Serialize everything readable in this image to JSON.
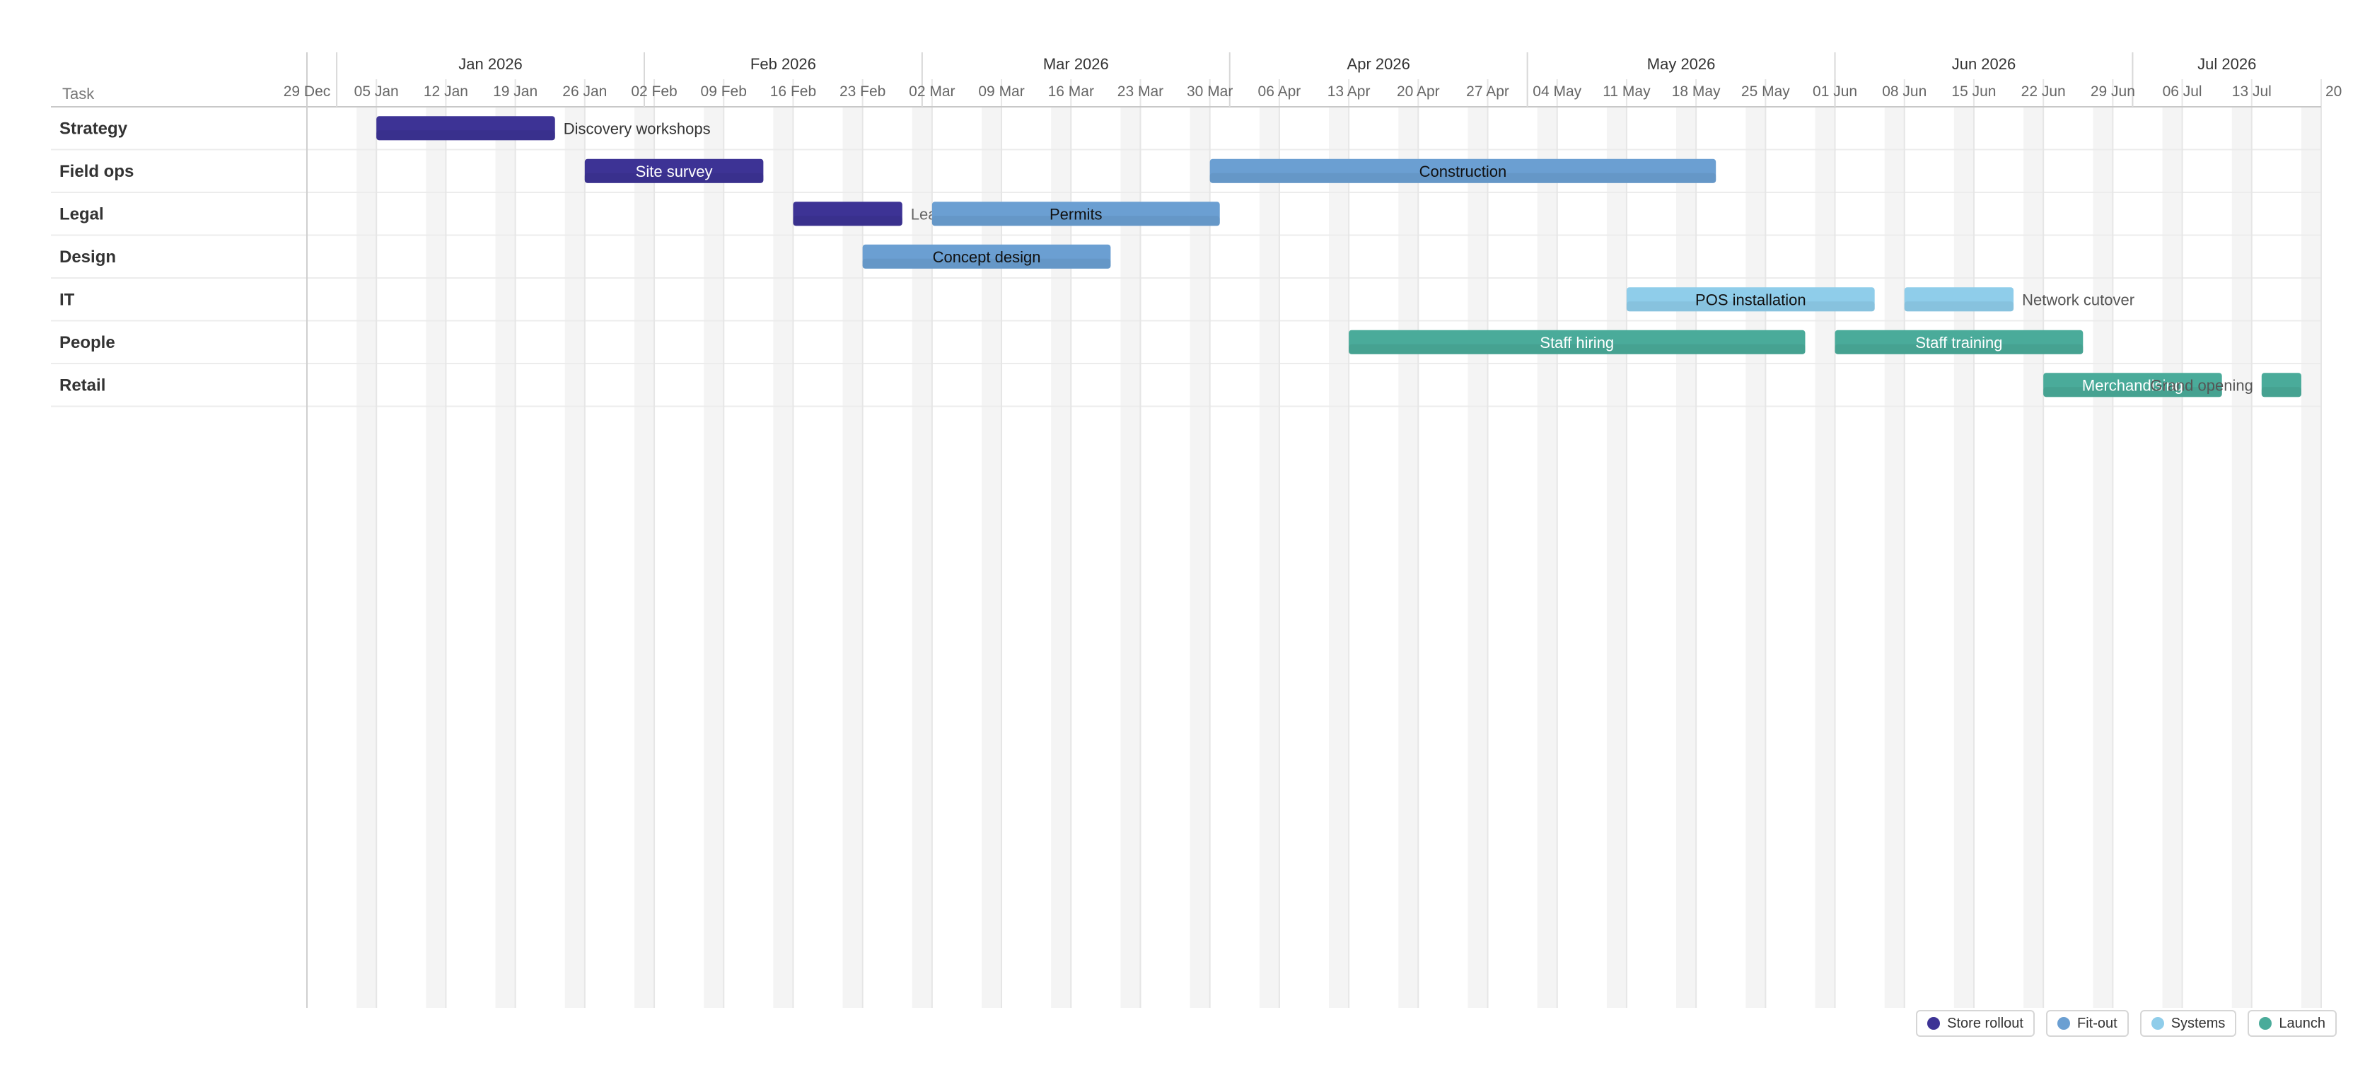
{
  "chart_data": {
    "type": "gantt",
    "task_header": "Task",
    "x_range": [
      "2025-12-29",
      "2026-07-20"
    ],
    "weekend_shading": true,
    "grid": true,
    "months": [
      {
        "label": "Jan 2026",
        "start": "2026-01-01",
        "end": "2026-02-01"
      },
      {
        "label": "Feb 2026",
        "start": "2026-02-01",
        "end": "2026-03-01"
      },
      {
        "label": "Mar 2026",
        "start": "2026-03-01",
        "end": "2026-04-01"
      },
      {
        "label": "Apr 2026",
        "start": "2026-04-01",
        "end": "2026-05-01"
      },
      {
        "label": "May 2026",
        "start": "2026-05-01",
        "end": "2026-06-01"
      },
      {
        "label": "Jun 2026",
        "start": "2026-06-01",
        "end": "2026-07-01"
      },
      {
        "label": "Jul 2026",
        "start": "2026-07-01",
        "end": "2026-07-20"
      }
    ],
    "weeks": [
      {
        "label": "29 Dec",
        "date": "2025-12-29"
      },
      {
        "label": "05 Jan",
        "date": "2026-01-05"
      },
      {
        "label": "12 Jan",
        "date": "2026-01-12"
      },
      {
        "label": "19 Jan",
        "date": "2026-01-19"
      },
      {
        "label": "26 Jan",
        "date": "2026-01-26"
      },
      {
        "label": "02 Feb",
        "date": "2026-02-02"
      },
      {
        "label": "09 Feb",
        "date": "2026-02-09"
      },
      {
        "label": "16 Feb",
        "date": "2026-02-16"
      },
      {
        "label": "23 Feb",
        "date": "2026-02-23"
      },
      {
        "label": "02 Mar",
        "date": "2026-03-02"
      },
      {
        "label": "09 Mar",
        "date": "2026-03-09"
      },
      {
        "label": "16 Mar",
        "date": "2026-03-16"
      },
      {
        "label": "23 Mar",
        "date": "2026-03-23"
      },
      {
        "label": "30 Mar",
        "date": "2026-03-30"
      },
      {
        "label": "06 Apr",
        "date": "2026-04-06"
      },
      {
        "label": "13 Apr",
        "date": "2026-04-13"
      },
      {
        "label": "20 Apr",
        "date": "2026-04-20"
      },
      {
        "label": "27 Apr",
        "date": "2026-04-27"
      },
      {
        "label": "04 May",
        "date": "2026-05-04"
      },
      {
        "label": "11 May",
        "date": "2026-05-11"
      },
      {
        "label": "18 May",
        "date": "2026-05-18"
      },
      {
        "label": "25 May",
        "date": "2026-05-25"
      },
      {
        "label": "01 Jun",
        "date": "2026-06-01"
      },
      {
        "label": "08 Jun",
        "date": "2026-06-08"
      },
      {
        "label": "15 Jun",
        "date": "2026-06-15"
      },
      {
        "label": "22 Jun",
        "date": "2026-06-22"
      },
      {
        "label": "29 Jun",
        "date": "2026-06-29"
      },
      {
        "label": "06 Jul",
        "date": "2026-07-06"
      },
      {
        "label": "13 Jul",
        "date": "2026-07-13"
      },
      {
        "label": "20",
        "date": "2026-07-20"
      }
    ],
    "categories": [
      "Strategy",
      "Field ops",
      "Legal",
      "Design",
      "IT",
      "People",
      "Retail"
    ],
    "series": [
      {
        "name": "Store rollout",
        "color": "#3d3395"
      },
      {
        "name": "Fit-out",
        "color": "#6b9fd2"
      },
      {
        "name": "Systems",
        "color": "#8fcdea"
      },
      {
        "name": "Launch",
        "color": "#4aab9a"
      }
    ],
    "tasks": [
      {
        "row": "Strategy",
        "label": "Discovery workshops",
        "start": "2026-01-05",
        "end": "2026-01-23",
        "series": "Store rollout",
        "label_position": "outside",
        "label_color": "#333333"
      },
      {
        "row": "Field ops",
        "label": "Site survey",
        "start": "2026-01-26",
        "end": "2026-02-13",
        "series": "Store rollout",
        "label_position": "inside",
        "label_color": "#ffffff"
      },
      {
        "row": "Field ops",
        "label": "Construction",
        "start": "2026-03-30",
        "end": "2026-05-20",
        "series": "Fit-out",
        "label_position": "inside",
        "label_color": "#111111"
      },
      {
        "row": "Legal",
        "label": "Lease signed",
        "start": "2026-02-16",
        "end": "2026-02-27",
        "series": "Store rollout",
        "label_position": "outside",
        "label_color": "#666666"
      },
      {
        "row": "Legal",
        "label": "Permits",
        "start": "2026-03-02",
        "end": "2026-03-31",
        "series": "Fit-out",
        "label_position": "inside",
        "label_color": "#111111"
      },
      {
        "row": "Design",
        "label": "Concept design",
        "start": "2026-02-23",
        "end": "2026-03-20",
        "series": "Fit-out",
        "label_position": "inside",
        "label_color": "#111111"
      },
      {
        "row": "IT",
        "label": "POS installation",
        "start": "2026-05-11",
        "end": "2026-06-05",
        "series": "Systems",
        "label_position": "inside",
        "label_color": "#111111"
      },
      {
        "row": "IT",
        "label": "Network cutover",
        "start": "2026-06-08",
        "end": "2026-06-19",
        "series": "Systems",
        "label_position": "outside",
        "label_color": "#555555"
      },
      {
        "row": "People",
        "label": "Staff hiring",
        "start": "2026-04-13",
        "end": "2026-05-29",
        "series": "Launch",
        "label_position": "inside",
        "label_color": "#ffffff"
      },
      {
        "row": "People",
        "label": "Staff training",
        "start": "2026-06-01",
        "end": "2026-06-26",
        "series": "Launch",
        "label_position": "inside",
        "label_color": "#ffffff"
      },
      {
        "row": "Retail",
        "label": "Merchandising",
        "start": "2026-06-22",
        "end": "2026-07-10",
        "series": "Launch",
        "label_position": "inside",
        "label_color": "#ffffff"
      },
      {
        "row": "Retail",
        "label": "Grand opening",
        "start": "2026-07-14",
        "end": "2026-07-18",
        "series": "Launch",
        "label_position": "outside-left",
        "label_color": "#555555"
      }
    ]
  }
}
